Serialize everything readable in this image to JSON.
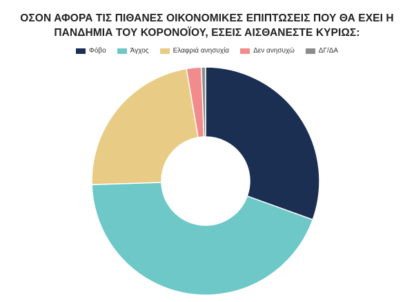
{
  "chart_data": {
    "type": "pie",
    "title_lines": [
      "ΟΣΟΝ ΑΦΟΡΑ ΤΙΣ ΠΙΘΑΝΕΣ ΟΙΚΟΝΟΜΙΚΕΣ ΕΠΙΠΤΩΣΕΙΣ ΠΟΥ ΘΑ ΕΧΕΙ Η",
      "ΠΑΝΔΗΜΙΑ ΤΟΥ ΚΟΡΟΝΟΪΟΥ, ΕΣΕΙΣ ΑΙΣΘΑΝΕΣΤΕ ΚΥΡΙΩΣ:"
    ],
    "donut": true,
    "legend_position": "top",
    "categories": [
      "Φόβο",
      "Άγχος",
      "Ελαφριά ανησυχία",
      "Δεν ανησυχώ",
      "ΔΓ/ΔΑ"
    ],
    "values": [
      30.5,
      44.0,
      22.8,
      2.1,
      0.6
    ],
    "colors": [
      "#1b2f52",
      "#6ec8c8",
      "#e8cc85",
      "#f28b8b",
      "#8c8c8c"
    ]
  }
}
